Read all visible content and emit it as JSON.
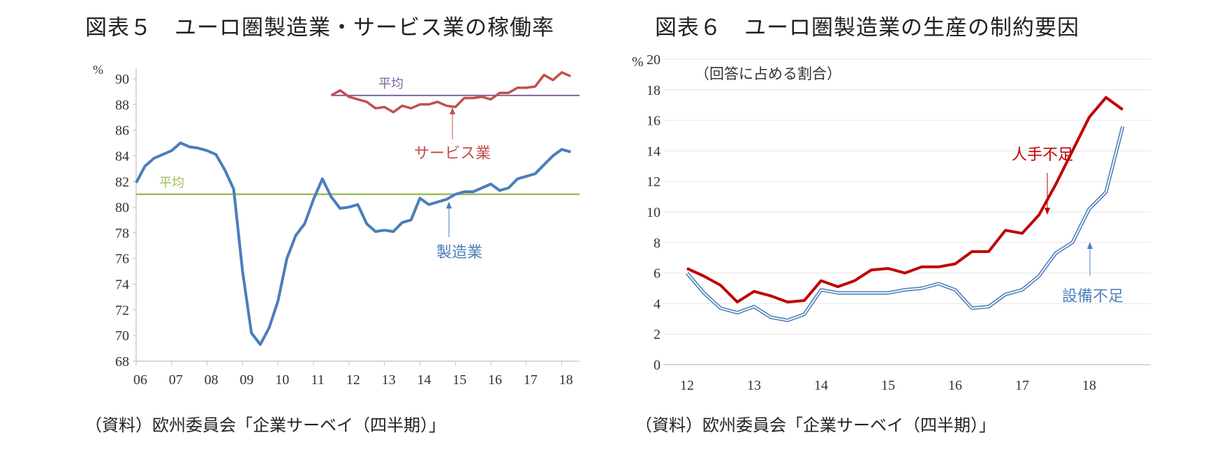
{
  "left_panel": {
    "title": "図表５　ユーロ圏製造業・サービス業の稼働率",
    "source": "（資料）欧州委員会「企業サーベイ（四半期）」"
  },
  "right_panel": {
    "title": "図表６　ユーロ圏製造業の生産の制約要因",
    "source": "（資料）欧州委員会「企業サーベイ（四半期）」"
  },
  "chart_data": [
    {
      "type": "line",
      "title": "図表５　ユーロ圏製造業・サービス業の稼働率",
      "ylabel": "%",
      "ylim": [
        68,
        90
      ],
      "yticks": [
        68,
        70,
        72,
        74,
        76,
        78,
        80,
        82,
        84,
        86,
        88,
        90
      ],
      "xlim": [
        2006.0,
        2018.5
      ],
      "xtick_labels": [
        "06",
        "07",
        "08",
        "09",
        "10",
        "11",
        "12",
        "13",
        "14",
        "15",
        "16",
        "17",
        "18"
      ],
      "grid": false,
      "colors": {
        "manufacturing": "#4a7ebb",
        "services": "#c0504d",
        "manufacturing_avg": "#9bbb59",
        "services_avg": "#8064a2",
        "axis": "#bfbfbf"
      },
      "series": [
        {
          "name": "製造業",
          "x_start": 2006.0,
          "step": 0.25,
          "values": [
            81.9,
            83.2,
            83.8,
            84.1,
            84.4,
            85.0,
            84.7,
            84.6,
            84.4,
            84.1,
            82.9,
            81.4,
            75.0,
            70.2,
            69.3,
            70.6,
            72.7,
            76.0,
            77.8,
            78.7,
            80.6,
            82.2,
            80.8,
            79.9,
            80.0,
            80.2,
            78.7,
            78.1,
            78.2,
            78.1,
            78.8,
            79.0,
            80.7,
            80.2,
            80.4,
            80.6,
            81.0,
            81.2,
            81.2,
            81.5,
            81.8,
            81.3,
            81.5,
            82.2,
            82.4,
            82.6,
            83.3,
            84.0,
            84.5,
            84.3
          ]
        },
        {
          "name": "サービス業",
          "x_start": 2011.5,
          "step": 0.25,
          "values": [
            88.7,
            89.1,
            88.6,
            88.4,
            88.2,
            87.7,
            87.8,
            87.4,
            87.9,
            87.7,
            88.0,
            88.0,
            88.2,
            87.9,
            87.8,
            88.5,
            88.5,
            88.6,
            88.4,
            88.9,
            88.9,
            89.3,
            89.3,
            89.4,
            90.3,
            89.9,
            90.5,
            90.2
          ]
        },
        {
          "name": "製造業平均",
          "from": 2006.0,
          "to": 2018.5,
          "value": 81.0
        },
        {
          "name": "サービス業平均",
          "from": 2011.5,
          "to": 2018.5,
          "value": 88.7
        }
      ],
      "annotations": [
        "平均",
        "平均",
        "サービス業",
        "製造業"
      ]
    },
    {
      "type": "line",
      "title": "図表６　ユーロ圏製造業の生産の制約要因",
      "subtitle": "（回答に占める割合）",
      "ylabel": "%",
      "ylim": [
        0,
        20
      ],
      "yticks": [
        0,
        2,
        4,
        6,
        8,
        10,
        12,
        14,
        16,
        18,
        20
      ],
      "xlim": [
        2012.0,
        2018.75
      ],
      "xtick_labels": [
        "12",
        "13",
        "14",
        "15",
        "16",
        "17",
        "18"
      ],
      "grid": true,
      "colors": {
        "labour": "#c00000",
        "equipment": "#4f81bd",
        "equipment_core": "#ffffff",
        "grid": "#e6e6e6",
        "axis": "#bfbfbf"
      },
      "series": [
        {
          "name": "人手不足",
          "x_start": 2012.0,
          "step": 0.25,
          "values": [
            6.3,
            5.8,
            5.2,
            4.1,
            4.8,
            4.5,
            4.1,
            4.2,
            5.5,
            5.1,
            5.5,
            6.2,
            6.3,
            6.0,
            6.4,
            6.4,
            6.6,
            7.4,
            7.4,
            8.8,
            8.6,
            9.8,
            11.8,
            14.0,
            16.2,
            17.5,
            16.7
          ]
        },
        {
          "name": "設備不足",
          "x_start": 2012.0,
          "step": 0.25,
          "values": [
            6.0,
            4.7,
            3.7,
            3.4,
            3.8,
            3.1,
            2.9,
            3.3,
            4.9,
            4.7,
            4.7,
            4.7,
            4.7,
            4.9,
            5.0,
            5.3,
            4.9,
            3.7,
            3.8,
            4.6,
            4.9,
            5.8,
            7.3,
            8.0,
            10.2,
            11.3,
            15.6
          ]
        }
      ],
      "annotations": [
        "人手不足",
        "設備不足"
      ]
    }
  ]
}
